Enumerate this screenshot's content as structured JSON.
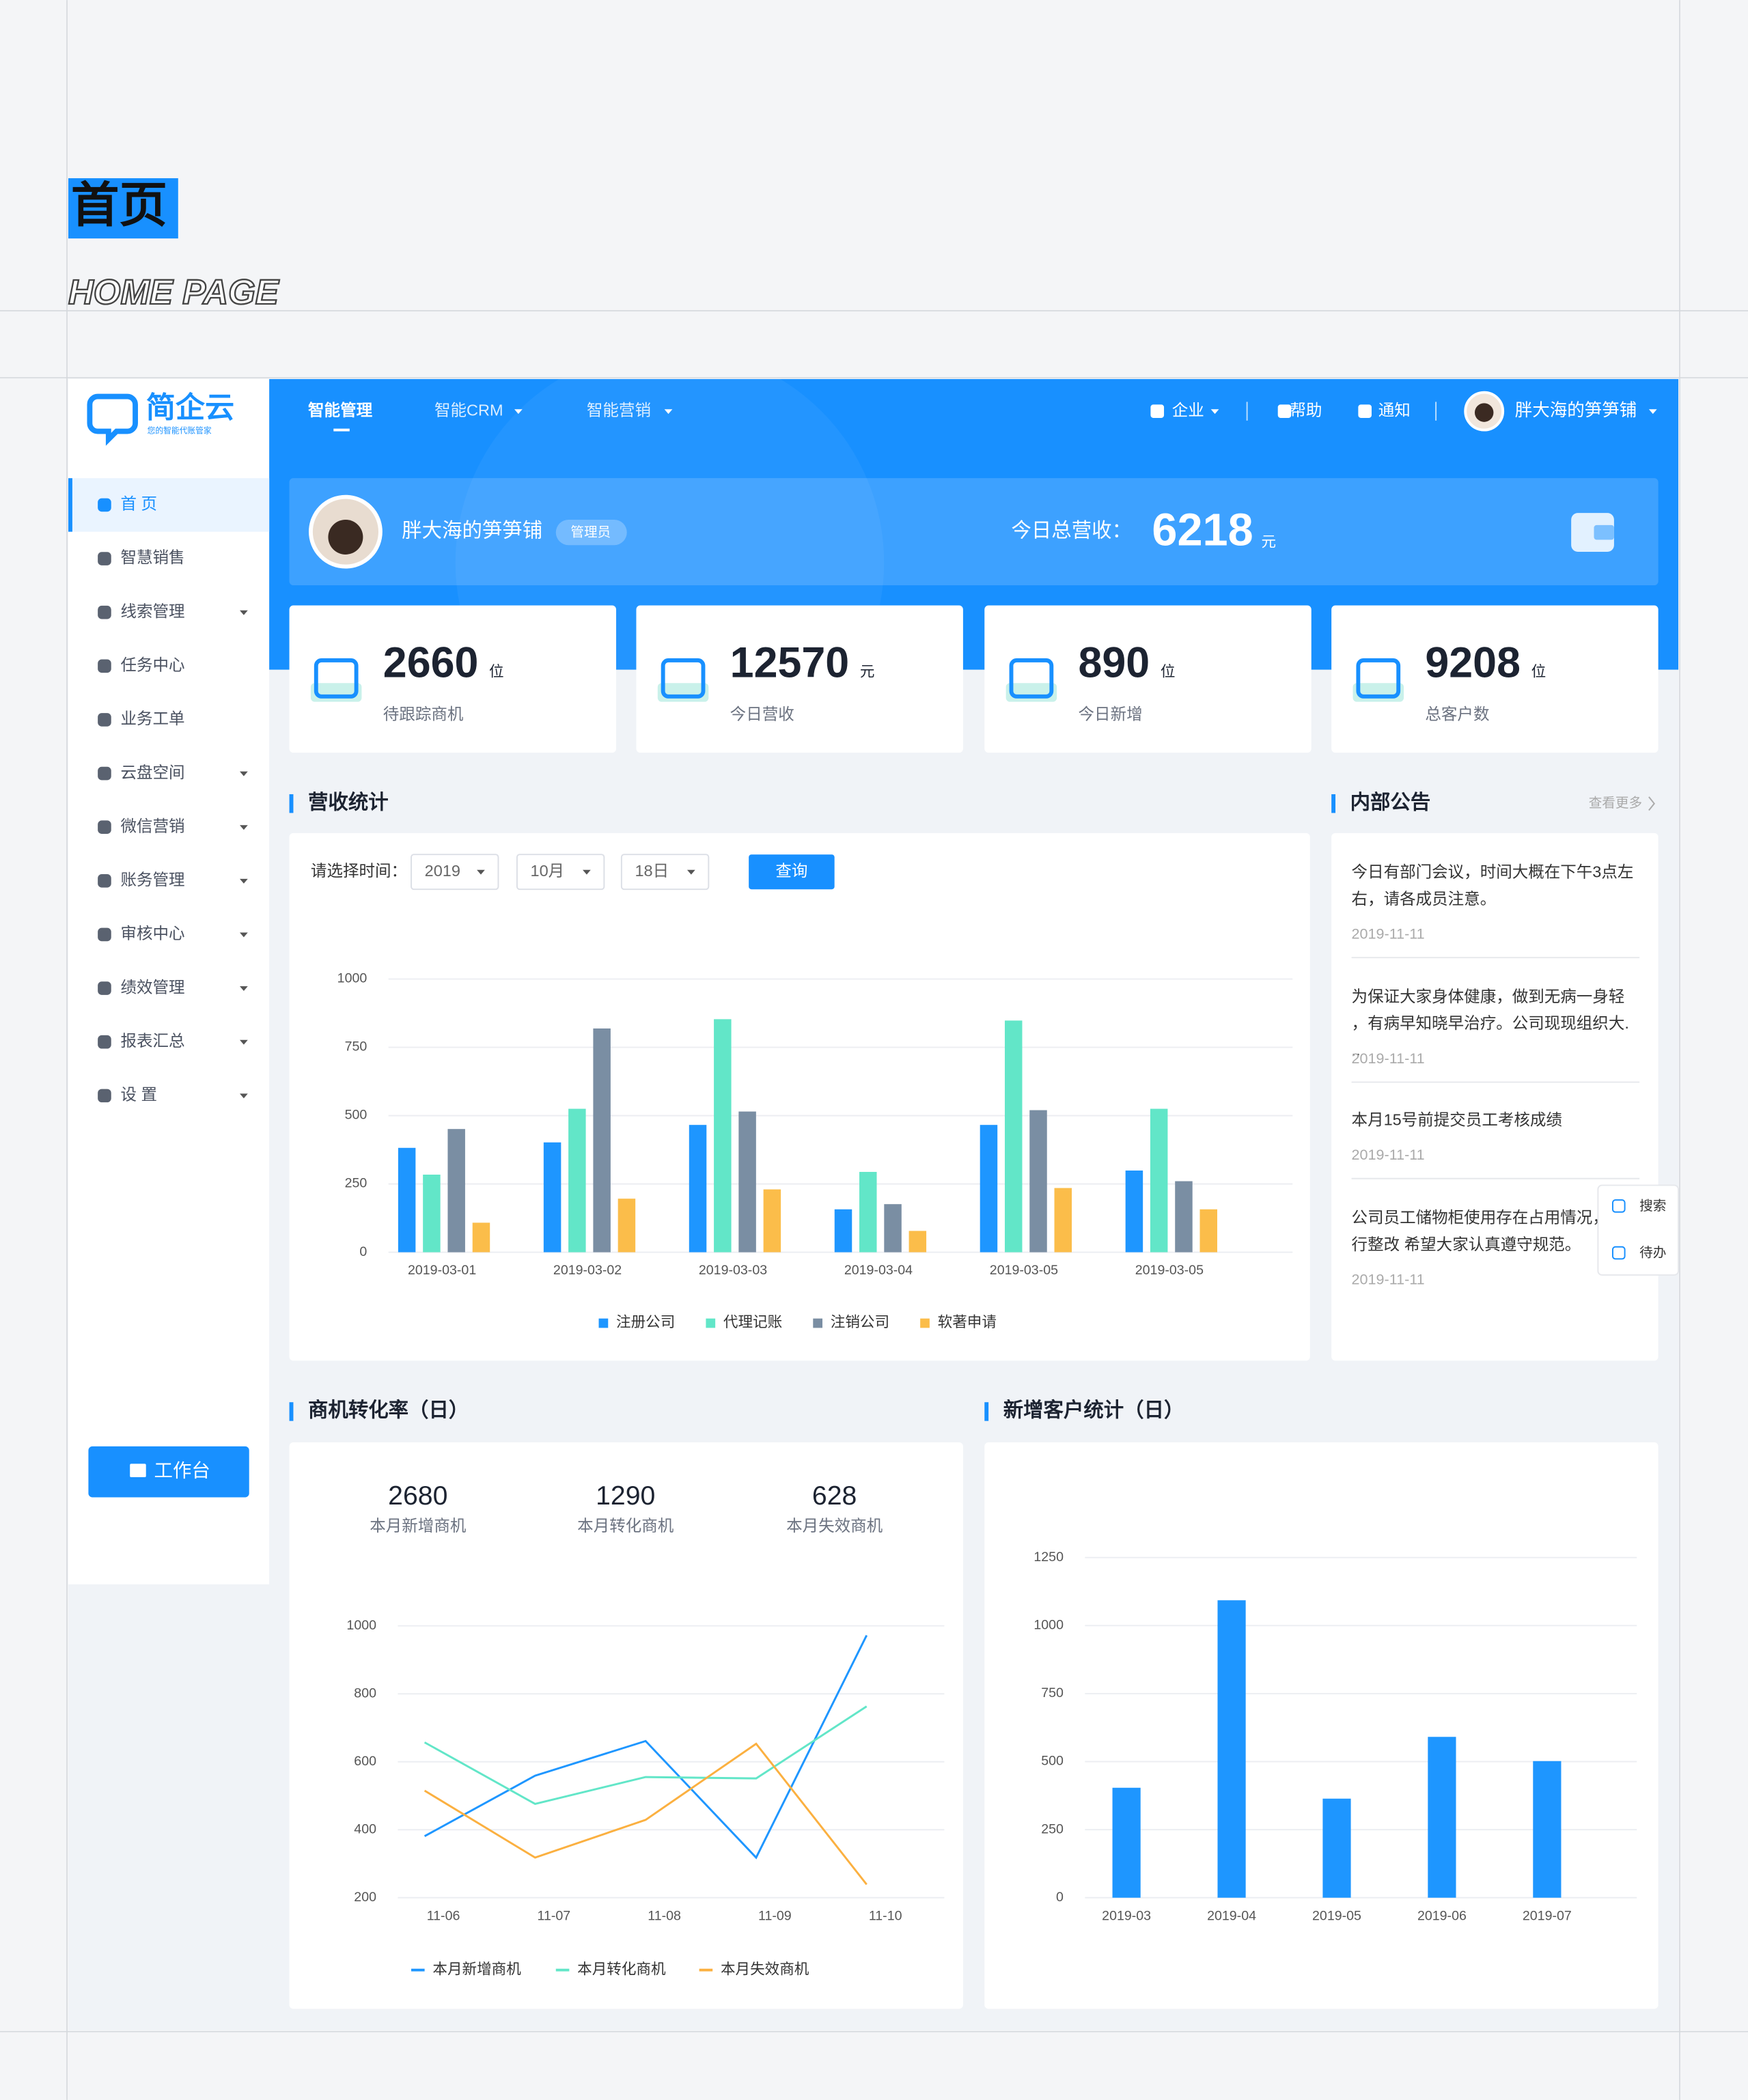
{
  "header": {
    "title": "首页",
    "subtitle": "HOME PAGE"
  },
  "logo": {
    "name": "简企云",
    "tagline": "您的智能代账管家"
  },
  "nav": {
    "items": [
      "智能管理",
      "智能CRM",
      "智能营销"
    ],
    "right": [
      "企业",
      "帮助",
      "通知"
    ],
    "user": "胖大海的笋笋铺"
  },
  "sidebar": {
    "items": [
      "首 页",
      "智慧销售",
      "线索管理",
      "任务中心",
      "业务工单",
      "云盘空间",
      "微信营销",
      "账务管理",
      "审核中心",
      "绩效管理",
      "报表汇总",
      "设 置"
    ],
    "button": "工作台"
  },
  "banner": {
    "name": "胖大海的笋笋铺",
    "role": "管理员",
    "revenue_label": "今日总营收：",
    "revenue": 6218,
    "unit": "元"
  },
  "stats": [
    {
      "value": 2660,
      "unit": "位",
      "label": "待跟踪商机"
    },
    {
      "value": 12570,
      "unit": "元",
      "label": "今日营收"
    },
    {
      "value": 890,
      "unit": "位",
      "label": "今日新增"
    },
    {
      "value": 9208,
      "unit": "位",
      "label": "总客户数"
    }
  ],
  "revenue": {
    "title": "营收统计",
    "filter_label": "请选择时间：",
    "year": "2019",
    "month": "10月",
    "day": "18日",
    "button": "查询"
  },
  "revenue_chart": {
    "type": "bar",
    "categories": [
      "2019-03-01",
      "2019-03-02",
      "2019-03-03",
      "2019-03-04",
      "2019-03-05",
      "2019-03-05"
    ],
    "series": [
      {
        "name": "注册公司",
        "color": "#1e96ff",
        "values": [
          382,
          402,
          466,
          157,
          466,
          299
        ]
      },
      {
        "name": "代理记账",
        "color": "#62e6c8",
        "values": [
          284,
          525,
          853,
          294,
          848,
          525
        ]
      },
      {
        "name": "注销公司",
        "color": "#7a8ea3",
        "values": [
          451,
          819,
          515,
          176,
          520,
          260
        ]
      },
      {
        "name": "软著申请",
        "color": "#fbbd4a",
        "values": [
          108,
          196,
          230,
          78,
          235,
          157
        ]
      }
    ],
    "ylim": [
      0,
      1000
    ],
    "yticks": [
      0,
      250,
      500,
      750,
      1000
    ],
    "grid": true
  },
  "notices": {
    "title": "内部公告",
    "more": "查看更多",
    "items": [
      {
        "text": "今日有部门会议，时间大概在下午3点左右，请各成员注意。",
        "date": "2019-11-11"
      },
      {
        "text": "为保证大家身体健康，做到无病一身轻，有病早知晓早治疗。公司现现组织大...",
        "date": "2019-11-11"
      },
      {
        "text": "本月15号前提交员工考核成绩",
        "date": "2019-11-11"
      },
      {
        "text": "公司员工储物柜使用存在占用情况，进行整改 希望大家认真遵守规范。",
        "date": "2019-11-11"
      }
    ]
  },
  "float": [
    "搜索",
    "待办"
  ],
  "conversion": {
    "title": "商机转化率（日）",
    "summary": [
      {
        "value": 2680,
        "label": "本月新增商机"
      },
      {
        "value": 1290,
        "label": "本月转化商机"
      },
      {
        "value": 628,
        "label": "本月失效商机"
      }
    ]
  },
  "conversion_chart": {
    "type": "line",
    "categories": [
      "11-06",
      "11-07",
      "11-08",
      "11-09",
      "11-10"
    ],
    "series": [
      {
        "name": "本月新增商机",
        "color": "#1e96ff",
        "values": [
          381,
          559,
          661,
          318,
          972
        ]
      },
      {
        "name": "本月转化商机",
        "color": "#62e6c8",
        "values": [
          657,
          476,
          555,
          551,
          763
        ]
      },
      {
        "name": "本月失效商机",
        "color": "#fbb040",
        "values": [
          515,
          318,
          429,
          653,
          239
        ]
      }
    ],
    "ylim": [
      200,
      1000
    ],
    "yticks": [
      200,
      400,
      600,
      800,
      1000
    ],
    "grid": true
  },
  "customers": {
    "title": "新增客户统计（日）"
  },
  "customer_chart": {
    "type": "bar",
    "categories": [
      "2019-03",
      "2019-04",
      "2019-05",
      "2019-06",
      "2019-07"
    ],
    "values": [
      404,
      1093,
      364,
      591,
      502
    ],
    "color": "#1e96ff",
    "ylim": [
      0,
      1250
    ],
    "yticks": [
      0,
      250,
      500,
      750,
      1000,
      1250
    ],
    "grid": true
  }
}
